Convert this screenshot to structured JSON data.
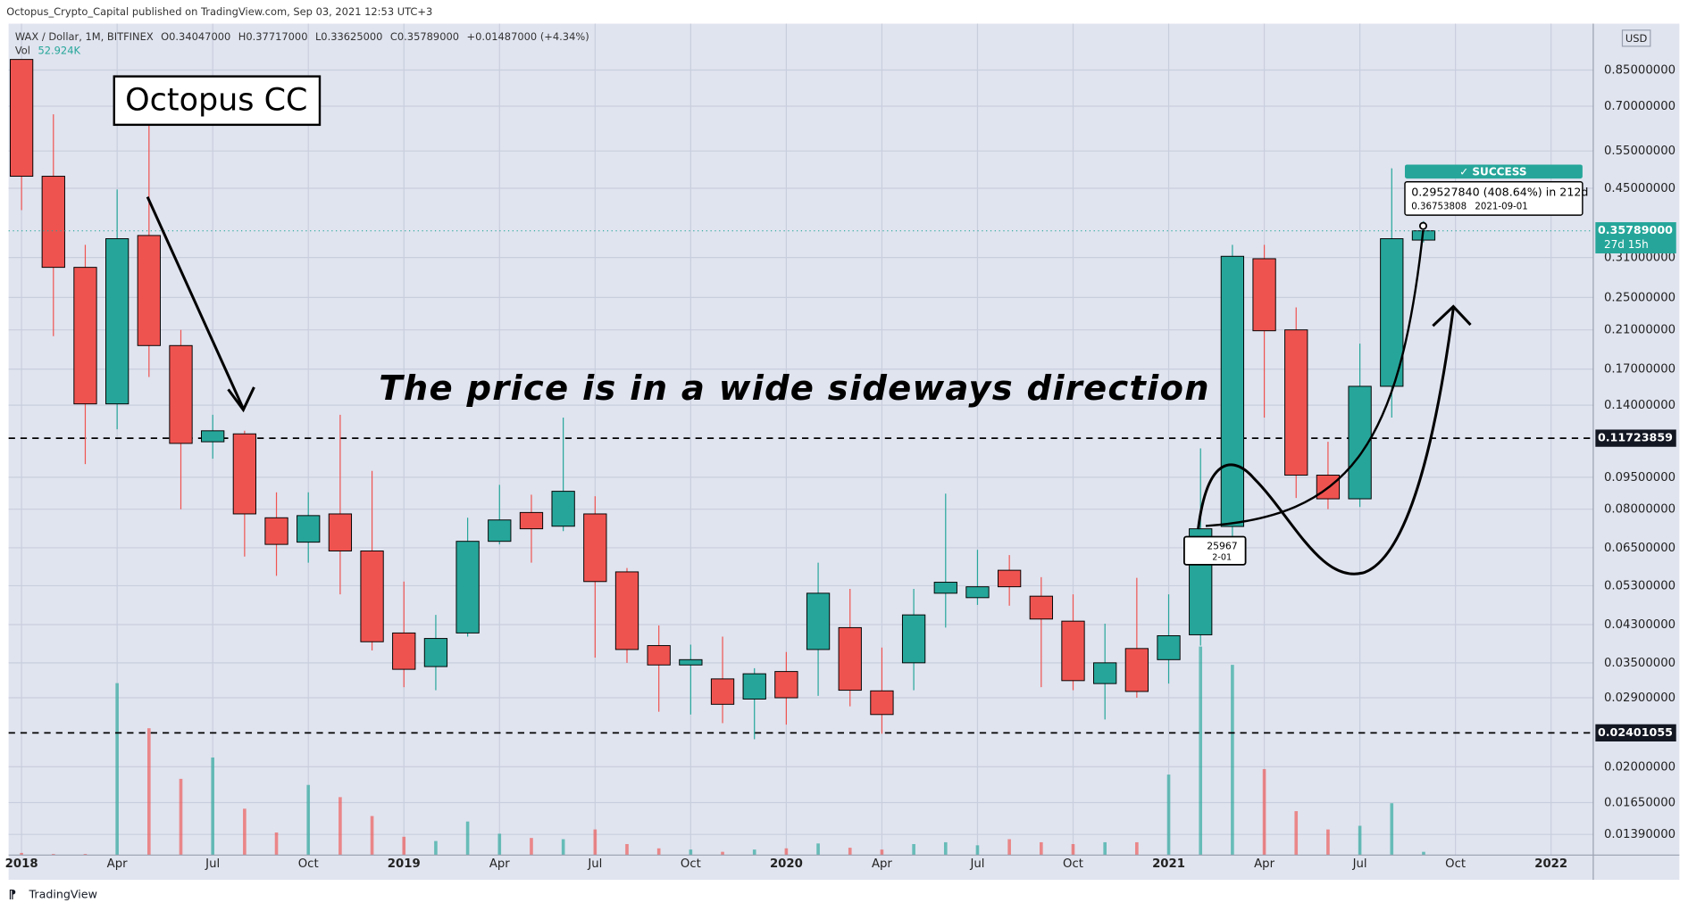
{
  "header": {
    "publisher": "Octopus_Crypto_Capital published on TradingView.com, Sep 03, 2021 12:53 UTC+3",
    "ohlc": [
      "O0.34047000",
      "H0.37717000",
      "L0.33625000",
      "C0.35789000",
      "+0.01487000 (+4.34%)"
    ],
    "vol_label": "Vol",
    "vol_value": "52.924K",
    "currency": "USD",
    "brand": "TradingView"
  },
  "annotations": {
    "badge": "Octopus CC",
    "comment": "The price is in a wide sideways direction",
    "success": "✓ SUCCESS",
    "success_detail": "0.29527840 (408.64%) in 212d",
    "success_price": "0.36753808",
    "success_date": "2021-09-01",
    "partial_price": "25967",
    "partial_date": "2-01"
  },
  "chart_data": {
    "type": "candlestick",
    "title": "WAX / Dollar, 1M, BITFINEX",
    "categories": [
      "2018",
      null,
      null,
      "Apr",
      null,
      null,
      "Jul",
      null,
      null,
      "Oct",
      null,
      null,
      "2019",
      null,
      null,
      "Apr",
      null,
      null,
      "Jul",
      null,
      null,
      "Oct",
      null,
      null,
      "2020",
      null,
      null,
      "Apr",
      null,
      null,
      "Jul",
      null,
      null,
      "Oct",
      null,
      null,
      "2021",
      null,
      null,
      "Apr",
      null,
      null,
      "Jul",
      null,
      null,
      "Oct",
      null,
      null,
      "2022",
      null
    ],
    "open": [
      0.9,
      0.48,
      0.294,
      0.141,
      0.349,
      0.193,
      0.115,
      0.12,
      0.0764,
      0.067,
      0.078,
      0.0639,
      0.0411,
      0.0343,
      0.0411,
      0.0673,
      0.0786,
      0.073,
      0.078,
      0.0571,
      0.0384,
      0.0346,
      0.0321,
      0.0288,
      0.0334,
      0.0376,
      0.0423,
      0.0301,
      0.035,
      0.0509,
      0.0497,
      0.0576,
      0.0501,
      0.0438,
      0.0313,
      0.0378,
      0.0356,
      0.0407,
      0.0729,
      0.308,
      0.21,
      0.0961,
      0.0846,
      0.155,
      0.34047,
      null,
      null,
      null,
      null,
      null
    ],
    "high": [
      0.9,
      0.67,
      0.332,
      0.447,
      0.66,
      0.21,
      0.133,
      0.122,
      0.0876,
      0.0876,
      0.133,
      0.0983,
      0.0542,
      0.0453,
      0.0764,
      0.0912,
      0.0865,
      0.131,
      0.0858,
      0.0583,
      0.0428,
      0.0386,
      0.0403,
      0.034,
      0.0371,
      0.06,
      0.0521,
      0.038,
      0.0521,
      0.087,
      0.0643,
      0.0625,
      0.0555,
      0.0506,
      0.0432,
      0.0553,
      0.0506,
      0.111,
      0.332,
      0.332,
      0.237,
      0.115,
      0.195,
      0.501,
      0.37717,
      null,
      null,
      null,
      null,
      null
    ],
    "low": [
      0.4,
      0.203,
      0.102,
      0.123,
      0.163,
      0.08,
      0.105,
      0.062,
      0.0559,
      0.06,
      0.0506,
      0.0374,
      0.0307,
      0.0302,
      0.0403,
      0.0662,
      0.06,
      0.0711,
      0.036,
      0.035,
      0.0269,
      0.0265,
      0.0253,
      0.0232,
      0.0251,
      0.0293,
      0.0277,
      0.0239,
      0.0302,
      0.0423,
      0.0478,
      0.0476,
      0.0307,
      0.0302,
      0.0258,
      0.029,
      0.0313,
      0.0384,
      0.0681,
      0.131,
      0.085,
      0.08,
      0.081,
      0.131,
      0.33625,
      null,
      null,
      null,
      null,
      null
    ],
    "close": [
      0.48,
      0.294,
      0.141,
      0.343,
      0.193,
      0.114,
      0.122,
      0.078,
      0.0662,
      0.0773,
      0.0639,
      0.0392,
      0.0338,
      0.0399,
      0.0673,
      0.0755,
      0.072,
      0.0881,
      0.0542,
      0.0376,
      0.0346,
      0.0356,
      0.028,
      0.033,
      0.029,
      0.0509,
      0.0302,
      0.0265,
      0.0453,
      0.054,
      0.0527,
      0.0527,
      0.0443,
      0.0318,
      0.035,
      0.03,
      0.0405,
      0.072,
      0.312,
      0.209,
      0.0961,
      0.0846,
      0.155,
      0.343,
      0.35789,
      null,
      null,
      null,
      null,
      null
    ],
    "volume": [
      35000,
      18000,
      18000,
      2820000,
      2080000,
      1250000,
      1600000,
      760000,
      370000,
      1150000,
      950000,
      640000,
      300000,
      230000,
      550000,
      350000,
      280000,
      260000,
      420000,
      180000,
      110000,
      90000,
      53000,
      90000,
      110000,
      190000,
      120000,
      90000,
      180000,
      210000,
      160000,
      260000,
      210000,
      180000,
      210000,
      210000,
      1320000,
      3420000,
      3120000,
      1410000,
      720000,
      420000,
      480000,
      850000,
      52924,
      null,
      null,
      null,
      null,
      null
    ],
    "vlim": [
      0,
      13637000
    ],
    "up_color": "#26a69a",
    "down_color": "#ef5350",
    "log_scale": true,
    "grid": true,
    "ylim": [
      0.01244,
      1.091
    ],
    "yticks": [
      {
        "value": 0.85,
        "label": "0.85000000"
      },
      {
        "value": 0.7,
        "label": "0.70000000"
      },
      {
        "value": 0.55,
        "label": "0.55000000"
      },
      {
        "value": 0.45,
        "label": "0.45000000"
      },
      {
        "value": 0.31,
        "label": "0.31000000"
      },
      {
        "value": 0.25,
        "label": "0.25000000"
      },
      {
        "value": 0.21,
        "label": "0.21000000"
      },
      {
        "value": 0.17,
        "label": "0.17000000"
      },
      {
        "value": 0.14,
        "label": "0.14000000"
      },
      {
        "value": 0.095,
        "label": "0.09500000"
      },
      {
        "value": 0.08,
        "label": "0.08000000"
      },
      {
        "value": 0.065,
        "label": "0.06500000"
      },
      {
        "value": 0.053,
        "label": "0.05300000"
      },
      {
        "value": 0.043,
        "label": "0.04300000"
      },
      {
        "value": 0.035,
        "label": "0.03500000"
      },
      {
        "value": 0.029,
        "label": "0.02900000"
      },
      {
        "value": 0.02,
        "label": "0.02000000"
      },
      {
        "value": 0.0165,
        "label": "0.01650000"
      },
      {
        "value": 0.0139,
        "label": "0.01390000"
      }
    ],
    "hlines": [
      {
        "value": 0.11723859,
        "label": "0.11723859"
      },
      {
        "value": 0.02401055,
        "label": "0.02401055"
      }
    ],
    "price_line": {
      "value": 0.35789,
      "label": "0.35789000",
      "countdown": "27d 15h",
      "color": "#26a69a"
    }
  }
}
